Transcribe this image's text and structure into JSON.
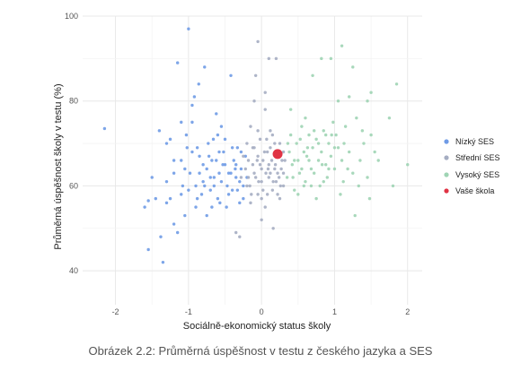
{
  "caption": "Obrázek 2.2: Průměrná úspěšnost v testu z českého jazyka a SES",
  "chart_data": {
    "type": "scatter",
    "title": "",
    "xlabel": "Sociálně-ekonomický status školy",
    "ylabel": "Průměrná úspěšnost školy v testu (%)",
    "xlim": [
      -2.45,
      2.2
    ],
    "ylim": [
      32,
      100
    ],
    "xticks": [
      -2,
      -1,
      0,
      1,
      2
    ],
    "yticks": [
      40,
      60,
      80,
      100
    ],
    "grid": true,
    "legend_position": "right",
    "series": [
      {
        "name": "Nízký SES",
        "color": "#6f9be6",
        "points": [
          [
            -2.15,
            73.5
          ],
          [
            -1.6,
            55
          ],
          [
            -1.55,
            45
          ],
          [
            -1.55,
            56.5
          ],
          [
            -1.45,
            57
          ],
          [
            -1.4,
            73
          ],
          [
            -1.38,
            48
          ],
          [
            -1.35,
            42
          ],
          [
            -1.3,
            61
          ],
          [
            -1.3,
            56
          ],
          [
            -1.25,
            57
          ],
          [
            -1.2,
            51
          ],
          [
            -1.2,
            63
          ],
          [
            -1.15,
            49
          ],
          [
            -1.15,
            89
          ],
          [
            -1.1,
            75
          ],
          [
            -1.1,
            66
          ],
          [
            -1.08,
            60
          ],
          [
            -1.05,
            53
          ],
          [
            -1.02,
            69
          ],
          [
            -1,
            97
          ],
          [
            -1.0,
            59
          ],
          [
            -0.98,
            63
          ],
          [
            -0.95,
            75
          ],
          [
            -0.92,
            81
          ],
          [
            -0.9,
            55
          ],
          [
            -0.88,
            69
          ],
          [
            -0.85,
            67
          ],
          [
            -0.82,
            58
          ],
          [
            -0.8,
            61
          ],
          [
            -0.78,
            88
          ],
          [
            -0.75,
            64
          ],
          [
            -0.73,
            70
          ],
          [
            -0.7,
            59
          ],
          [
            -0.68,
            66
          ],
          [
            -0.65,
            62
          ],
          [
            -0.62,
            77
          ],
          [
            -0.6,
            57
          ],
          [
            -0.58,
            68
          ],
          [
            -0.55,
            61
          ],
          [
            -0.53,
            65
          ],
          [
            -0.5,
            71
          ],
          [
            -0.48,
            55
          ],
          [
            -0.45,
            63
          ],
          [
            -0.42,
            86
          ],
          [
            -0.4,
            59
          ],
          [
            -0.38,
            66
          ],
          [
            -0.35,
            62
          ],
          [
            -0.33,
            69
          ],
          [
            -0.3,
            56
          ],
          [
            -0.28,
            64
          ],
          [
            -0.25,
            60
          ],
          [
            -0.22,
            67
          ],
          [
            -0.2,
            62
          ],
          [
            -0.95,
            68
          ],
          [
            -0.75,
            53
          ],
          [
            -0.6,
            72
          ],
          [
            -1.2,
            66
          ],
          [
            -0.85,
            63
          ],
          [
            -0.45,
            58
          ],
          [
            -0.68,
            55
          ],
          [
            -0.5,
            65
          ],
          [
            -1.05,
            64
          ],
          [
            -0.55,
            74
          ],
          [
            -0.3,
            61
          ],
          [
            -0.65,
            60
          ],
          [
            -0.4,
            69
          ],
          [
            -0.25,
            57
          ],
          [
            -0.8,
            65
          ],
          [
            -1.3,
            70
          ],
          [
            -0.7,
            62
          ],
          [
            -0.58,
            63
          ],
          [
            -0.35,
            65
          ],
          [
            -0.47,
            60
          ],
          [
            -0.9,
            60
          ],
          [
            -1.1,
            58
          ],
          [
            -0.62,
            66
          ],
          [
            -0.52,
            68
          ],
          [
            -0.42,
            63
          ],
          [
            -0.33,
            59
          ],
          [
            -0.78,
            60
          ],
          [
            -0.72,
            67
          ],
          [
            -1.5,
            62
          ],
          [
            -0.95,
            79
          ],
          [
            -1.25,
            71
          ],
          [
            -0.88,
            57
          ],
          [
            -0.66,
            71
          ],
          [
            -0.36,
            64
          ],
          [
            -0.28,
            68
          ],
          [
            -0.57,
            56
          ],
          [
            -0.86,
            84
          ],
          [
            -1.03,
            72
          ]
        ]
      },
      {
        "name": "Střední SES",
        "color": "#a5adc2",
        "points": [
          [
            -0.35,
            49
          ],
          [
            -0.3,
            48
          ],
          [
            -0.2,
            60
          ],
          [
            -0.18,
            66
          ],
          [
            -0.15,
            74
          ],
          [
            -0.15,
            56
          ],
          [
            -0.12,
            69
          ],
          [
            -0.1,
            63
          ],
          [
            -0.08,
            86
          ],
          [
            -0.05,
            67
          ],
          [
            -0.05,
            58
          ],
          [
            -0.02,
            71
          ],
          [
            0,
            64
          ],
          [
            0,
            61
          ],
          [
            0.02,
            66
          ],
          [
            0.05,
            55
          ],
          [
            0.05,
            78
          ],
          [
            0.08,
            68
          ],
          [
            0.1,
            62
          ],
          [
            0.1,
            65
          ],
          [
            0.12,
            69
          ],
          [
            0.15,
            59
          ],
          [
            0.15,
            72
          ],
          [
            0.18,
            64
          ],
          [
            0.2,
            67
          ],
          [
            0.2,
            61
          ],
          [
            0.22,
            63
          ],
          [
            0.25,
            70
          ],
          [
            0.25,
            57
          ],
          [
            0.28,
            66
          ],
          [
            0.3,
            60
          ],
          [
            0.3,
            68
          ],
          [
            -0.1,
            80
          ],
          [
            -0.05,
            73
          ],
          [
            0.05,
            82
          ],
          [
            0.1,
            90
          ],
          [
            0.2,
            90
          ],
          [
            -0.2,
            70
          ],
          [
            -0.12,
            65
          ],
          [
            0.08,
            58
          ],
          [
            0.18,
            70
          ],
          [
            0.02,
            59
          ],
          [
            -0.08,
            62
          ],
          [
            0.12,
            63
          ],
          [
            0.22,
            58
          ],
          [
            -0.18,
            62
          ],
          [
            -0.02,
            65
          ],
          [
            0.14,
            66
          ],
          [
            -0.25,
            67
          ],
          [
            0.07,
            71
          ],
          [
            0.27,
            64
          ],
          [
            -0.14,
            58
          ],
          [
            0.04,
            68
          ],
          [
            0.16,
            61
          ],
          [
            -0.06,
            66
          ],
          [
            0.24,
            62
          ],
          [
            0.0,
            57
          ],
          [
            0.32,
            66
          ],
          [
            -0.22,
            64
          ],
          [
            0.12,
            73
          ],
          [
            -0.04,
            61
          ],
          [
            0.19,
            65
          ],
          [
            -0.16,
            60
          ],
          [
            0.06,
            63
          ],
          [
            0.26,
            60
          ],
          [
            -0.1,
            69
          ],
          [
            0.09,
            64
          ],
          [
            -0.28,
            62
          ],
          [
            0.3,
            63
          ],
          [
            0.0,
            52
          ],
          [
            0.16,
            50
          ],
          [
            -0.05,
            94
          ]
        ]
      },
      {
        "name": "Vysoký SES",
        "color": "#9fd4b4",
        "points": [
          [
            0.35,
            62
          ],
          [
            0.38,
            68
          ],
          [
            0.4,
            72
          ],
          [
            0.42,
            65
          ],
          [
            0.45,
            59
          ],
          [
            0.48,
            70
          ],
          [
            0.5,
            66
          ],
          [
            0.52,
            63
          ],
          [
            0.55,
            74
          ],
          [
            0.58,
            68
          ],
          [
            0.6,
            61
          ],
          [
            0.62,
            67
          ],
          [
            0.65,
            72
          ],
          [
            0.68,
            64
          ],
          [
            0.7,
            69
          ],
          [
            0.72,
            63
          ],
          [
            0.75,
            71
          ],
          [
            0.78,
            66
          ],
          [
            0.8,
            60
          ],
          [
            0.82,
            68
          ],
          [
            0.85,
            73
          ],
          [
            0.88,
            65
          ],
          [
            0.9,
            62
          ],
          [
            0.92,
            70
          ],
          [
            0.95,
            67
          ],
          [
            1.0,
            64
          ],
          [
            1.02,
            72
          ],
          [
            1.05,
            69
          ],
          [
            1.1,
            66
          ],
          [
            1.12,
            61
          ],
          [
            1.15,
            74
          ],
          [
            1.2,
            68
          ],
          [
            1.25,
            63
          ],
          [
            1.3,
            76
          ],
          [
            1.35,
            66
          ],
          [
            1.4,
            70
          ],
          [
            1.45,
            62
          ],
          [
            1.5,
            72
          ],
          [
            1.55,
            68
          ],
          [
            0.7,
            86
          ],
          [
            0.82,
            90
          ],
          [
            0.95,
            90
          ],
          [
            1.05,
            80
          ],
          [
            1.1,
            93
          ],
          [
            1.2,
            81
          ],
          [
            1.25,
            88
          ],
          [
            1.28,
            53
          ],
          [
            1.45,
            80
          ],
          [
            1.5,
            82
          ],
          [
            1.75,
            76
          ],
          [
            1.8,
            60
          ],
          [
            1.85,
            84
          ],
          [
            2.0,
            65
          ],
          [
            0.4,
            78
          ],
          [
            0.5,
            58
          ],
          [
            0.6,
            76
          ],
          [
            0.75,
            57
          ],
          [
            0.85,
            61
          ],
          [
            0.98,
            75
          ],
          [
            1.08,
            58
          ],
          [
            1.18,
            64
          ],
          [
            0.45,
            66
          ],
          [
            0.55,
            64
          ],
          [
            0.65,
            66
          ],
          [
            0.78,
            70
          ],
          [
            0.88,
            72
          ],
          [
            1.0,
            69
          ],
          [
            0.58,
            60
          ],
          [
            0.72,
            73
          ],
          [
            0.92,
            64
          ],
          [
            1.33,
            60
          ],
          [
            1.6,
            66
          ],
          [
            0.36,
            70
          ],
          [
            0.43,
            62
          ],
          [
            0.53,
            71
          ],
          [
            0.63,
            69
          ],
          [
            0.68,
            60
          ],
          [
            0.83,
            65
          ],
          [
            0.96,
            72
          ],
          [
            1.13,
            70
          ],
          [
            1.38,
            73
          ],
          [
            1.48,
            57
          ]
        ]
      },
      {
        "name": "Vaše škola",
        "color": "#e03344",
        "points": [
          [
            0.22,
            67.5
          ]
        ]
      }
    ]
  }
}
